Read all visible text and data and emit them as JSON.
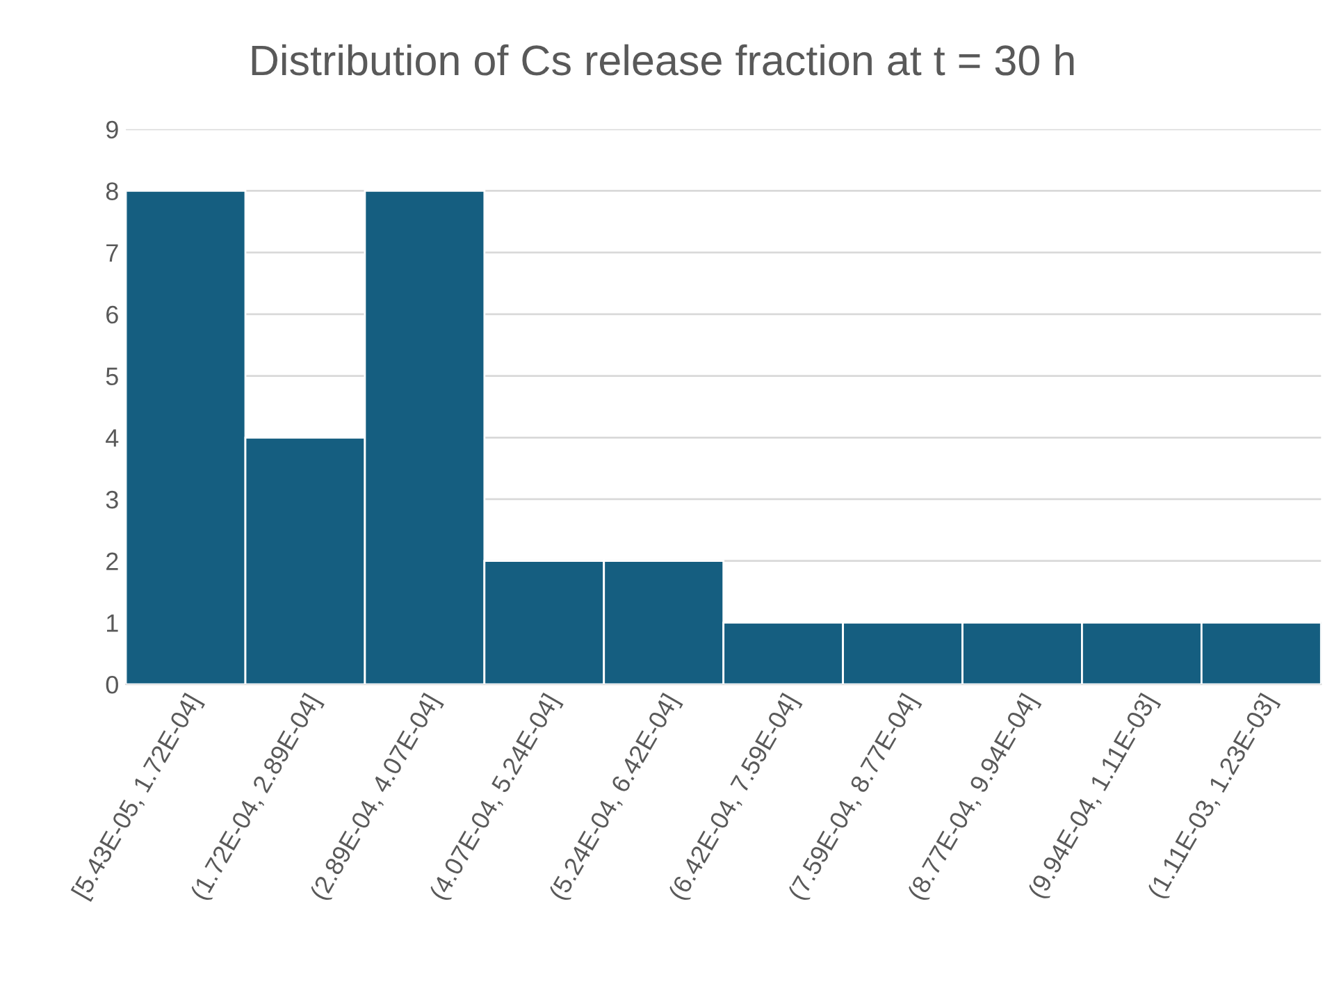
{
  "chart_data": {
    "type": "bar",
    "title": "Distribution of Cs release fraction at t = 30 h",
    "categories": [
      "[5.43E-05, 1.72E-04]",
      "(1.72E-04, 2.89E-04]",
      "(2.89E-04, 4.07E-04]",
      "(4.07E-04, 5.24E-04]",
      "(5.24E-04, 6.42E-04]",
      "(6.42E-04, 7.59E-04]",
      "(7.59E-04, 8.77E-04]",
      "(8.77E-04, 9.94E-04]",
      "(9.94E-04, 1.11E-03]",
      "(1.11E-03, 1.23E-03]"
    ],
    "values": [
      8,
      4,
      8,
      2,
      2,
      1,
      1,
      1,
      1,
      1
    ],
    "color": "#155e80",
    "ylim": [
      0,
      9
    ],
    "yticks": [
      0,
      1,
      2,
      3,
      4,
      5,
      6,
      7,
      8,
      9
    ],
    "grid": "y",
    "legend": false
  }
}
